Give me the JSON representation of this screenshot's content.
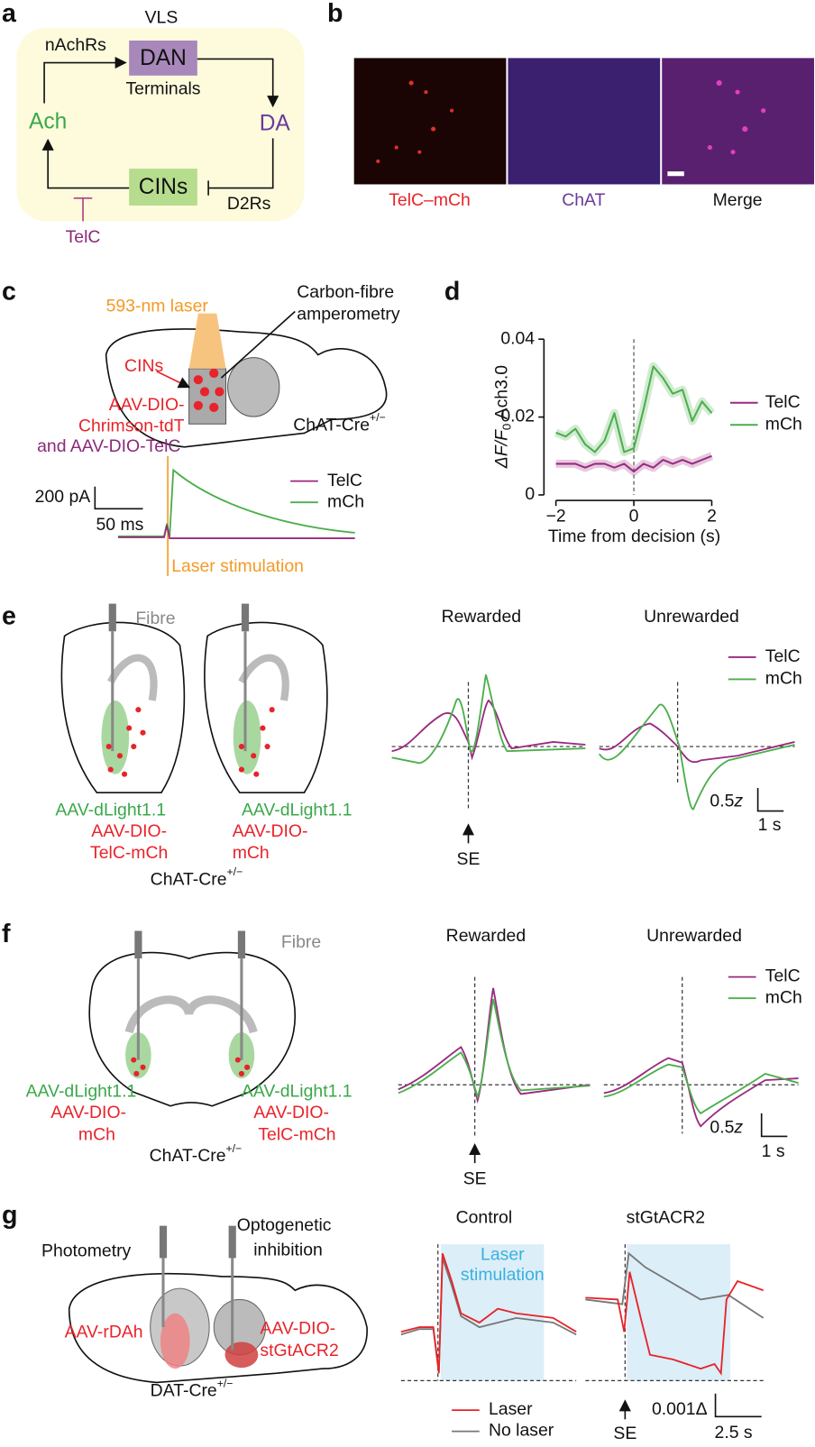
{
  "panels": {
    "a": {
      "letter": "a",
      "region": "VLS",
      "receptor_top": "nAchRs",
      "dan": "DAN",
      "dan_sub": "Terminals",
      "ach": "Ach",
      "da": "DA",
      "cins": "CINs",
      "receptor_right": "D2Rs",
      "blocker": "TelC"
    },
    "b": {
      "letter": "b",
      "labels": [
        "TelC–mCh",
        "ChAT",
        "Merge"
      ]
    },
    "c": {
      "letter": "c",
      "laser": "593-nm laser",
      "method": [
        "Carbon-fibre",
        "amperometry"
      ],
      "cins": "CINs",
      "virus": [
        "AAV-DIO-",
        "Chrimson-tdT",
        "and AAV-DIO-TelC"
      ],
      "mouse": "ChAT-Cre",
      "mouse_sup": "+/−",
      "scale_y": "200 pA",
      "scale_x": "50 ms",
      "legend": [
        "TelC",
        "mCh"
      ],
      "stim": "Laser stimulation"
    },
    "d": {
      "letter": "d",
      "chart_data": {
        "type": "line",
        "xlabel": "Time from decision (s)",
        "ylabel": "ΔF/F",
        "ylabel_sub": "0",
        "ylabel_suffix": " Ach3.0",
        "x": [
          -2,
          -1.75,
          -1.5,
          -1.25,
          -1,
          -0.75,
          -0.5,
          -0.25,
          0,
          0.25,
          0.5,
          0.75,
          1,
          1.25,
          1.5,
          1.75,
          2
        ],
        "series": [
          {
            "name": "TelC",
            "color": "#9a2a80",
            "values": [
              0.008,
              0.008,
              0.008,
              0.007,
              0.008,
              0.008,
              0.007,
              0.008,
              0.006,
              0.008,
              0.007,
              0.009,
              0.008,
              0.009,
              0.008,
              0.009,
              0.01
            ]
          },
          {
            "name": "mCh",
            "color": "#4cae4c",
            "values": [
              0.016,
              0.015,
              0.017,
              0.013,
              0.011,
              0.014,
              0.021,
              0.011,
              0.012,
              0.022,
              0.033,
              0.03,
              0.026,
              0.027,
              0.019,
              0.024,
              0.021
            ]
          }
        ],
        "xlim": [
          -2,
          2
        ],
        "xticks": [
          {
            "value": -2,
            "label": "−2"
          },
          0,
          2
        ],
        "ylim": [
          0,
          0.04
        ],
        "yticks": [
          0,
          0.02,
          0.04
        ]
      }
    },
    "e": {
      "letter": "e",
      "fibre": "Fibre",
      "left": [
        "AAV-dLight1.1",
        "AAV-DIO-",
        "TelC-mCh"
      ],
      "right": [
        "AAV-dLight1.1",
        "AAV-DIO-",
        "mCh"
      ],
      "mouse": "ChAT-Cre",
      "mouse_sup": "+/−",
      "titles": [
        "Rewarded",
        "Unrewarded"
      ],
      "legend": [
        "TelC",
        "mCh"
      ],
      "scale_y": "0.5",
      "scale_y_unit": "z",
      "scale_x": "1 s",
      "event": "SE"
    },
    "f": {
      "letter": "f",
      "fibre": "Fibre",
      "left": [
        "AAV-dLight1.1",
        "AAV-DIO-",
        "mCh"
      ],
      "right": [
        "AAV-dLight1.1",
        "AAV-DIO-",
        "TelC-mCh"
      ],
      "mouse": "ChAT-Cre",
      "mouse_sup": "+/−",
      "titles": [
        "Rewarded",
        "Unrewarded"
      ],
      "legend": [
        "TelC",
        "mCh"
      ],
      "scale_y": "0.5",
      "scale_y_unit": "z",
      "scale_x": "1 s",
      "event": "SE"
    },
    "g": {
      "letter": "g",
      "left_method": "Photometry",
      "right_method": [
        "Optogenetic",
        "inhibition"
      ],
      "left_virus": "AAV-rDAh",
      "right_virus": [
        "AAV-DIO-",
        "stGtACR2"
      ],
      "mouse": "DAT-Cre",
      "mouse_sup": "+/−",
      "titles": [
        "Control",
        "stGtACR2"
      ],
      "stim": [
        "Laser",
        "stimulation"
      ],
      "legend": [
        "Laser",
        "No laser"
      ],
      "scale_y": "0.001Δ",
      "scale_x": "2.5 s",
      "event": "SE"
    }
  }
}
